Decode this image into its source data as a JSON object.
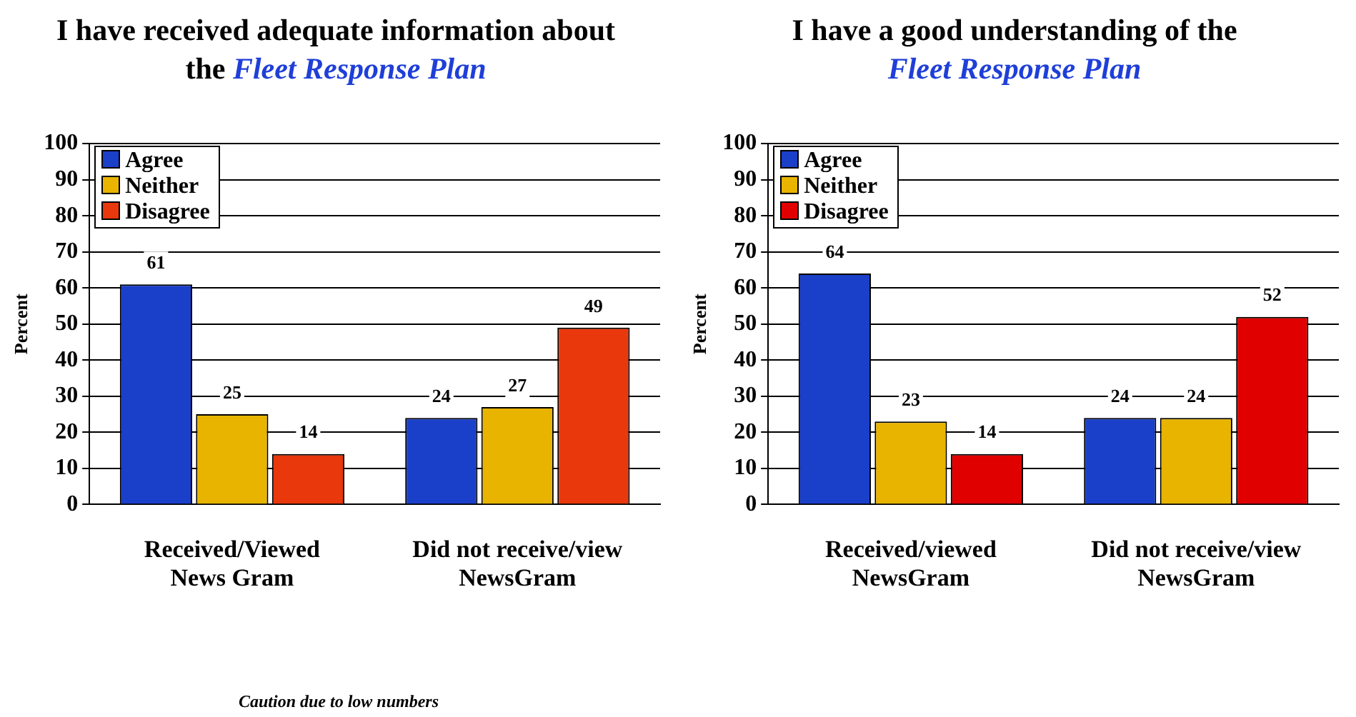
{
  "chart_data": [
    {
      "type": "bar",
      "title": "I have received adequate information about the",
      "subtitle": "Fleet Response Plan",
      "ylabel": "Percent",
      "categories": [
        "Received/Viewed News Gram",
        "Did not receive/view NewsGram"
      ],
      "series": [
        {
          "name": "Agree",
          "color": "#1a3fc8",
          "values": [
            61,
            24
          ]
        },
        {
          "name": "Neither",
          "color": "#e8b400",
          "values": [
            25,
            27
          ]
        },
        {
          "name": "Disagree",
          "color": "#e8380c",
          "values": [
            14,
            49
          ]
        }
      ],
      "ylim": [
        0,
        100
      ],
      "yticks": [
        0,
        10,
        20,
        30,
        40,
        50,
        60,
        70,
        80,
        90,
        100
      ],
      "grid": "y",
      "legend": "top left",
      "data_labels": true,
      "annotations": [
        "Caution due to low numbers"
      ]
    },
    {
      "type": "bar",
      "title": "I have a good understanding of the",
      "subtitle": "Fleet Response Plan",
      "ylabel": "Percent",
      "categories": [
        "Received/viewed NewsGram",
        "Did not receive/view NewsGram"
      ],
      "series": [
        {
          "name": "Agree",
          "color": "#1a3fc8",
          "values": [
            64,
            24
          ]
        },
        {
          "name": "Neither",
          "color": "#e8b400",
          "values": [
            23,
            24
          ]
        },
        {
          "name": "Disagree",
          "color": "#e00000",
          "values": [
            14,
            52
          ]
        }
      ],
      "ylim": [
        0,
        100
      ],
      "yticks": [
        0,
        10,
        20,
        30,
        40,
        50,
        60,
        70,
        80,
        90,
        100
      ],
      "grid": "y",
      "legend": "top left",
      "data_labels": true
    }
  ]
}
